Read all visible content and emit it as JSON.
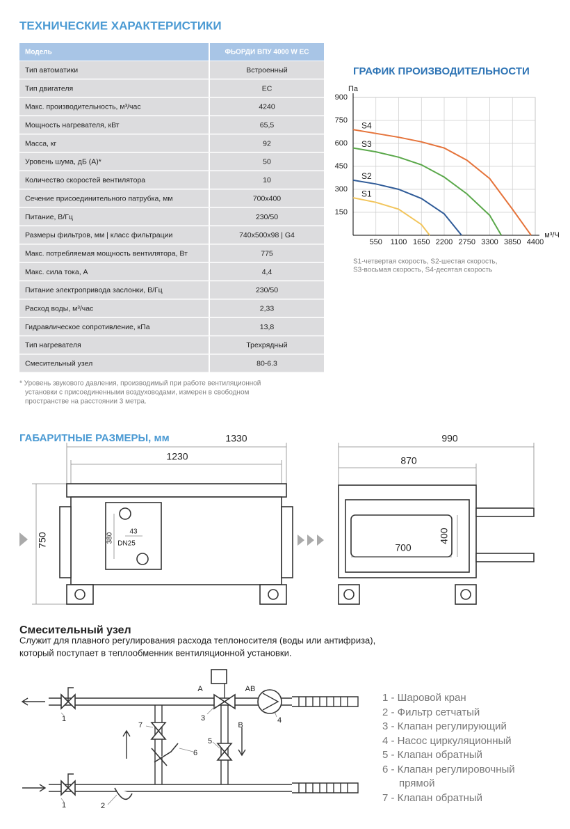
{
  "specs": {
    "title": "ТЕХНИЧЕСКИЕ ХАРАКТЕРИСТИКИ",
    "header": [
      "Модель",
      "ФЬОРДИ ВПУ 4000 W EC"
    ],
    "rows": [
      [
        "Тип автоматики",
        "Встроенный"
      ],
      [
        "Тип двигателя",
        "EC"
      ],
      [
        "Макс. производительность, м³/час",
        "4240"
      ],
      [
        "Мощность нагревателя, кВт",
        "65,5"
      ],
      [
        "Масса, кг",
        "92"
      ],
      [
        "Уровень шума, дБ (А)*",
        "50"
      ],
      [
        "Количество скоростей вентилятора",
        "10"
      ],
      [
        "Сечение присоединительного патрубка, мм",
        "700x400"
      ],
      [
        "Питание, В/Гц",
        "230/50"
      ],
      [
        "Размеры фильтров, мм  |  класс фильтрации",
        "740x500x98  |  G4"
      ],
      [
        "Макс. потребляемая мощность вентилятора, Вт",
        "775"
      ],
      [
        "Макс. сила тока, А",
        "4,4"
      ],
      [
        "Питание электропривода заслонки, В/Гц",
        "230/50"
      ],
      [
        "Расход воды, м³/час",
        "2,33"
      ],
      [
        "Гидравлическое сопротивление, кПа",
        "13,8"
      ],
      [
        "Тип нагревателя",
        "Трехрядный"
      ],
      [
        "Смесительный узел",
        "80-6.3"
      ]
    ],
    "footnote": [
      "* Уровень звукового давления, производимый при работе вентиляционной",
      "установки с присоединенными воздуховодами, измерен в свободном",
      "пространстве на расстоянии 3 метра."
    ]
  },
  "chart_data": {
    "type": "line",
    "title": "ГРАФИК ПРОИЗВОДИТЕЛЬНОСТИ",
    "y_label": "Па",
    "x_label": "м³/Ч",
    "xlim": [
      0,
      4400
    ],
    "xticks": [
      550,
      1100,
      1650,
      2200,
      2750,
      3300,
      3850,
      4400
    ],
    "ylim": [
      0,
      900
    ],
    "yticks": [
      150,
      300,
      450,
      600,
      750,
      900
    ],
    "grid": true,
    "series": [
      {
        "name": "S1",
        "color": "#f2c55c",
        "x": [
          0,
          550,
          1100,
          1650,
          1850
        ],
        "values": [
          245,
          215,
          170,
          70,
          0
        ]
      },
      {
        "name": "S2",
        "color": "#2f5b98",
        "x": [
          0,
          550,
          1100,
          1650,
          2200,
          2620
        ],
        "values": [
          360,
          335,
          300,
          240,
          140,
          0
        ]
      },
      {
        "name": "S3",
        "color": "#5aa84a",
        "x": [
          0,
          550,
          1100,
          1650,
          2200,
          2750,
          3300,
          3580
        ],
        "values": [
          570,
          545,
          510,
          460,
          380,
          270,
          130,
          0
        ]
      },
      {
        "name": "S4",
        "color": "#e5733a",
        "x": [
          0,
          550,
          1100,
          1650,
          2200,
          2750,
          3300,
          3850,
          4300
        ],
        "values": [
          690,
          665,
          640,
          610,
          570,
          490,
          370,
          170,
          0
        ]
      }
    ],
    "note": [
      "S1-четвертая скорость, S2-шестая скорость,",
      "S3-восьмая скорость, S4-десятая скорость"
    ]
  },
  "dimensions": {
    "title": "ГАБАРИТНЫЕ РАЗМЕРЫ, мм",
    "front": {
      "length_total": 1330,
      "length": 1230,
      "height": 750,
      "panel_height": 380,
      "panel_offset": 43,
      "pipe": "DN25"
    },
    "side": {
      "width_total": 990,
      "width": 870,
      "duct_width": 700,
      "duct_height": 400
    }
  },
  "mixing": {
    "title": "Смесительный узел",
    "description": [
      "Служит для плавного регулирования расхода теплоносителя (воды или антифриза),",
      "который поступает в теплообменник вентиляционной установки."
    ],
    "ports": [
      "A",
      "AB",
      "B"
    ],
    "callouts": [
      "1",
      "7",
      "3",
      "6",
      "5",
      "4",
      "1",
      "2"
    ],
    "legend": [
      "1 - Шаровой кран",
      "2 - Фильтр сетчатый",
      "3 - Клапан регулирующий",
      "4 - Насос циркуляционный",
      "5 - Клапан обратный",
      "6 - Клапан регулировочный",
      "прямой",
      "7 - Клапан обратный"
    ]
  }
}
